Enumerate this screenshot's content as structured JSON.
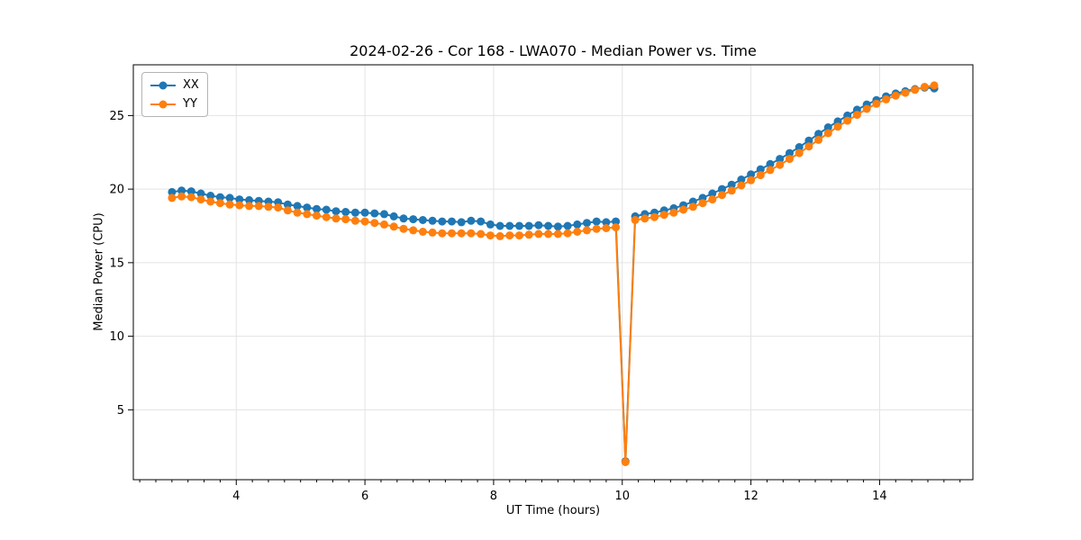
{
  "figure": {
    "background": "#ffffff"
  },
  "chart_data": {
    "type": "line",
    "title": "2024-02-26 - Cor 168 - LWA070 - Median Power vs. Time",
    "xlabel": "UT Time (hours)",
    "ylabel": "Median Power (CPU)",
    "legend_position": "upper left",
    "grid": true,
    "grid_color": "#e3e3e3",
    "spine_color": "#000000",
    "xlim": [
      2.4,
      15.45
    ],
    "ylim": [
      0.25,
      28.45
    ],
    "xticks": [
      4,
      6,
      8,
      10,
      12,
      14
    ],
    "yticks": [
      5,
      10,
      15,
      20,
      25
    ],
    "x_minor_step": 0.25,
    "x": [
      3.0,
      3.15,
      3.3,
      3.45,
      3.6,
      3.75,
      3.9,
      4.05,
      4.2,
      4.35,
      4.5,
      4.65,
      4.8,
      4.95,
      5.1,
      5.25,
      5.4,
      5.55,
      5.7,
      5.85,
      6.0,
      6.15,
      6.3,
      6.45,
      6.6,
      6.75,
      6.9,
      7.05,
      7.2,
      7.35,
      7.5,
      7.65,
      7.8,
      7.95,
      8.1,
      8.25,
      8.4,
      8.55,
      8.7,
      8.85,
      9.0,
      9.15,
      9.3,
      9.45,
      9.6,
      9.75,
      9.9,
      10.05,
      10.2,
      10.35,
      10.5,
      10.65,
      10.8,
      10.95,
      11.1,
      11.25,
      11.4,
      11.55,
      11.7,
      11.85,
      12.0,
      12.15,
      12.3,
      12.45,
      12.6,
      12.75,
      12.9,
      13.05,
      13.2,
      13.35,
      13.5,
      13.65,
      13.8,
      13.95,
      14.1,
      14.25,
      14.4,
      14.55,
      14.7,
      14.85
    ],
    "series": [
      {
        "name": "XX",
        "color": "#1f77b4",
        "values": [
          19.8,
          19.9,
          19.85,
          19.7,
          19.55,
          19.45,
          19.4,
          19.3,
          19.25,
          19.2,
          19.15,
          19.1,
          18.95,
          18.85,
          18.75,
          18.65,
          18.6,
          18.5,
          18.45,
          18.4,
          18.4,
          18.35,
          18.3,
          18.15,
          18.0,
          17.95,
          17.9,
          17.85,
          17.8,
          17.8,
          17.75,
          17.85,
          17.8,
          17.6,
          17.5,
          17.5,
          17.5,
          17.5,
          17.55,
          17.5,
          17.45,
          17.5,
          17.6,
          17.7,
          17.8,
          17.75,
          17.8,
          1.5,
          18.15,
          18.3,
          18.4,
          18.55,
          18.7,
          18.9,
          19.15,
          19.4,
          19.7,
          20.0,
          20.3,
          20.65,
          21.0,
          21.35,
          21.7,
          22.05,
          22.45,
          22.85,
          23.3,
          23.75,
          24.2,
          24.6,
          25.0,
          25.4,
          25.75,
          26.05,
          26.3,
          26.5,
          26.65,
          26.8,
          26.9,
          26.85
        ]
      },
      {
        "name": "YY",
        "color": "#ff7f0e",
        "values": [
          19.4,
          19.5,
          19.45,
          19.3,
          19.15,
          19.05,
          18.95,
          18.9,
          18.85,
          18.85,
          18.8,
          18.75,
          18.55,
          18.4,
          18.3,
          18.2,
          18.1,
          18.0,
          17.95,
          17.85,
          17.8,
          17.7,
          17.6,
          17.45,
          17.3,
          17.2,
          17.1,
          17.05,
          17.0,
          17.0,
          17.0,
          17.0,
          16.95,
          16.85,
          16.8,
          16.85,
          16.85,
          16.9,
          16.95,
          16.95,
          16.95,
          17.0,
          17.1,
          17.2,
          17.3,
          17.35,
          17.4,
          1.45,
          17.9,
          18.0,
          18.1,
          18.25,
          18.4,
          18.6,
          18.8,
          19.05,
          19.3,
          19.6,
          19.9,
          20.25,
          20.6,
          20.95,
          21.3,
          21.65,
          22.05,
          22.45,
          22.9,
          23.35,
          23.8,
          24.25,
          24.65,
          25.05,
          25.45,
          25.8,
          26.1,
          26.35,
          26.55,
          26.75,
          26.95,
          27.05
        ]
      }
    ]
  }
}
